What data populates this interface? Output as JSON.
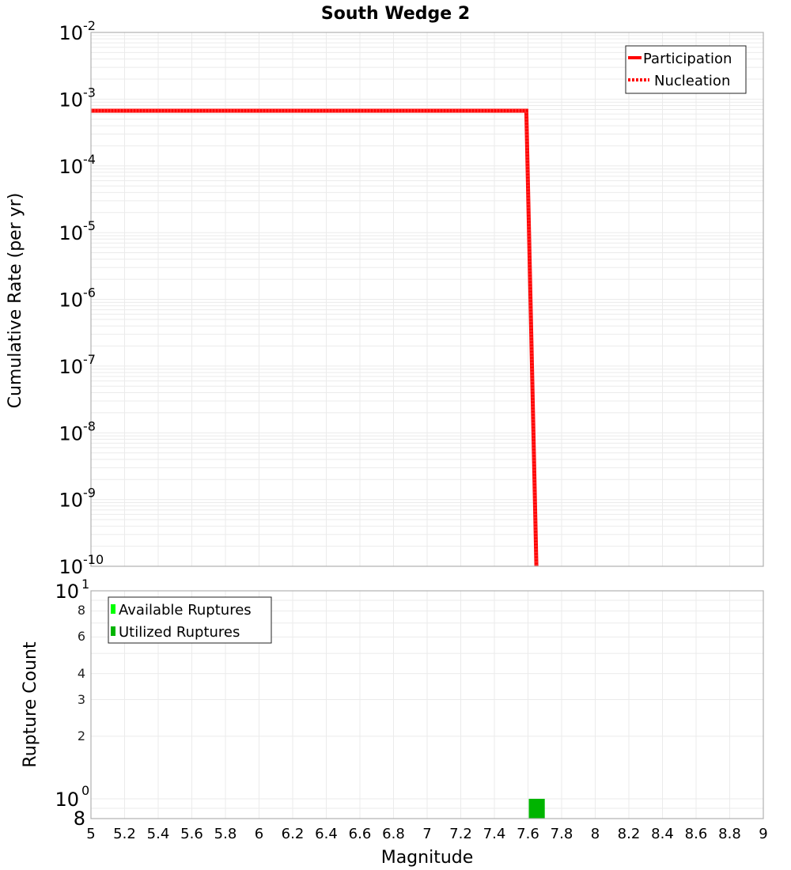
{
  "title": "South Wedge 2",
  "colors": {
    "participation": "#ff0000",
    "nucleation": "#ff0000",
    "available": "#00ff00",
    "utilized": "#00b400",
    "grid": "#ebebeb",
    "frame": "#b0b0b0"
  },
  "chart_data": [
    {
      "type": "line",
      "title": "South Wedge 2",
      "xlabel": "Magnitude",
      "ylabel": "Cumulative Rate (per yr)",
      "yscale": "log",
      "xlim": [
        5,
        9
      ],
      "ylim": [
        1e-10,
        0.01
      ],
      "y_tick_labels": [
        "10^-2",
        "10^-3",
        "10^-4",
        "10^-5",
        "10^-6",
        "10^-7",
        "10^-8",
        "10^-9",
        "10^-10"
      ],
      "grid": true,
      "legend_position": "upper right",
      "series": [
        {
          "name": "Participation",
          "style": "solid",
          "color": "#ff0000",
          "x": [
            5.0,
            7.59,
            7.65
          ],
          "y": [
            0.00067,
            0.00067,
            1e-10
          ]
        },
        {
          "name": "Nucleation",
          "style": "dotted",
          "color": "#ff0000",
          "x": [
            5.0,
            7.59,
            7.65
          ],
          "y": [
            0.00067,
            0.00067,
            1e-10
          ]
        }
      ]
    },
    {
      "type": "bar",
      "xlabel": "Magnitude",
      "ylabel": "Rupture Count",
      "yscale": "log",
      "xlim": [
        5,
        9
      ],
      "ylim": [
        0.8,
        10
      ],
      "y_tick_labels": [
        "10^1",
        "8",
        "6",
        "4",
        "3",
        "2",
        "10^0",
        "8"
      ],
      "x_tick_labels": [
        "5",
        "5.2",
        "5.4",
        "5.6",
        "5.8",
        "6",
        "6.2",
        "6.4",
        "6.6",
        "6.8",
        "7",
        "7.2",
        "7.4",
        "7.6",
        "7.8",
        "8",
        "8.2",
        "8.4",
        "8.6",
        "8.8",
        "9"
      ],
      "grid": true,
      "legend_position": "upper left",
      "series": [
        {
          "name": "Available Ruptures",
          "color": "#00ff00",
          "x": [
            7.65
          ],
          "values": [
            1
          ]
        },
        {
          "name": "Utilized Ruptures",
          "color": "#00b400",
          "x": [
            7.65
          ],
          "values": [
            1
          ]
        }
      ]
    }
  ],
  "top": {
    "ylabel": "Cumulative Rate (per yr)",
    "yticks": [
      {
        "base": "10",
        "exp": "-2"
      },
      {
        "base": "10",
        "exp": "-3"
      },
      {
        "base": "10",
        "exp": "-4"
      },
      {
        "base": "10",
        "exp": "-5"
      },
      {
        "base": "10",
        "exp": "-6"
      },
      {
        "base": "10",
        "exp": "-7"
      },
      {
        "base": "10",
        "exp": "-8"
      },
      {
        "base": "10",
        "exp": "-9"
      },
      {
        "base": "10",
        "exp": "-10"
      }
    ],
    "legend": [
      "Participation",
      "Nucleation"
    ]
  },
  "bottom": {
    "ylabel": "Rupture Count",
    "ytick_major_top": {
      "base": "10",
      "exp": "1"
    },
    "ytick_major_bottom": {
      "base": "10",
      "exp": "0"
    },
    "ytick_minor": [
      "8",
      "6",
      "4",
      "3",
      "2"
    ],
    "ytick_bottom_minor": "8",
    "legend": [
      "Available Ruptures",
      "Utilized Ruptures"
    ]
  },
  "xaxis": {
    "label": "Magnitude",
    "ticks": [
      "5",
      "5.2",
      "5.4",
      "5.6",
      "5.8",
      "6",
      "6.2",
      "6.4",
      "6.6",
      "6.8",
      "7",
      "7.2",
      "7.4",
      "7.6",
      "7.8",
      "8",
      "8.2",
      "8.4",
      "8.6",
      "8.8",
      "9"
    ]
  }
}
